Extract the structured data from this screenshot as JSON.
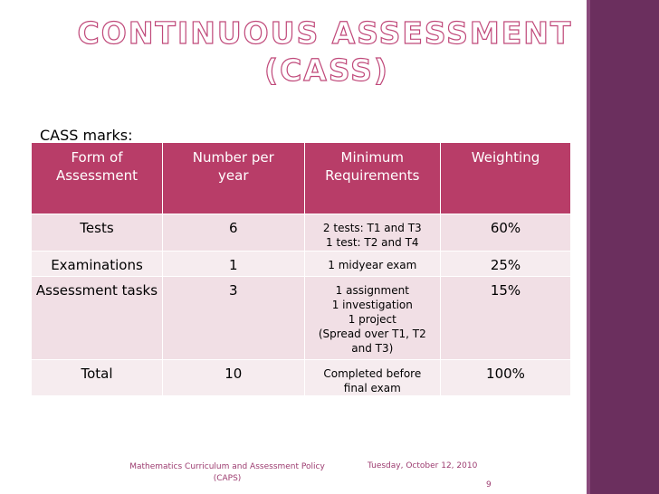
{
  "title": {
    "line1": "CONTINUOUS ASSESSMENT",
    "line2": "(CASS)"
  },
  "cass_label": "CASS marks:",
  "table": {
    "headers": [
      "Form of Assessment",
      "Number per year",
      "Minimum Requirements",
      "Weighting"
    ],
    "rows": [
      {
        "form": "Tests",
        "number": "6",
        "requirements": [
          "2 tests: T1 and T3",
          "1 test: T2 and T4"
        ],
        "weighting": "60%"
      },
      {
        "form": "Examinations",
        "number": "1",
        "requirements": [
          "1 midyear exam"
        ],
        "weighting": "25%"
      },
      {
        "form": "Assessment tasks",
        "number": "3",
        "requirements": [
          "1 assignment",
          "1 investigation",
          "1 project",
          "(Spread over T1, T2",
          "and T3)"
        ],
        "weighting": "15%"
      },
      {
        "form": "Total",
        "number": "10",
        "requirements": [
          "Completed before",
          "final exam"
        ],
        "weighting": "100%"
      }
    ]
  },
  "footer": {
    "policy_line1": "Mathematics Curriculum and Assessment Policy",
    "policy_line2": "(CAPS)",
    "date": "Tuesday, October 12, 2010",
    "page_number": "9"
  },
  "colors": {
    "header_bg": "#b83d68",
    "row_light": "#f6ecef",
    "row_alt": "#f1dfe5",
    "side_bar": "#6b2f5e",
    "accent": "#c0497a"
  }
}
